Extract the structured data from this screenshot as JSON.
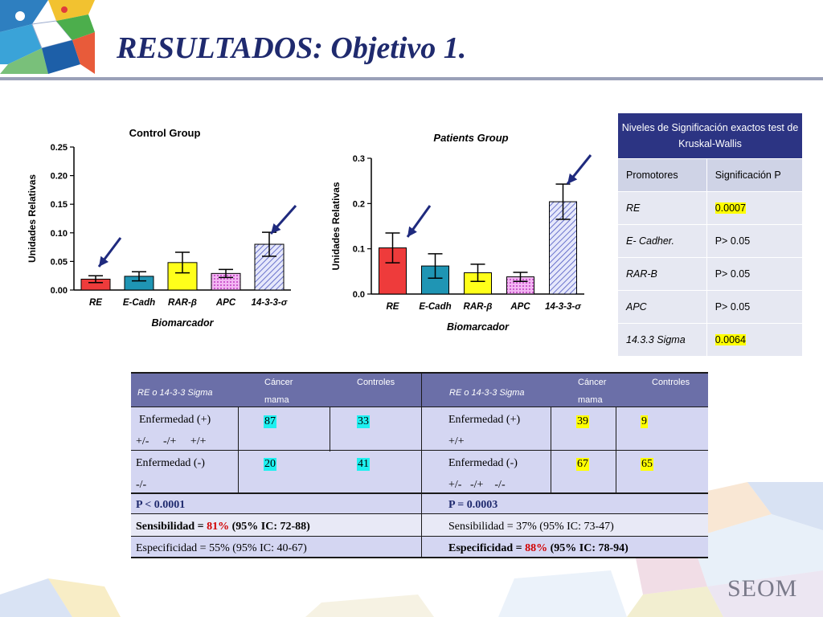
{
  "page": {
    "title": "RESULTADOS: Objetivo 1.",
    "logo": "SEOM"
  },
  "chart_data": [
    {
      "type": "bar",
      "title": "Control Group",
      "xlabel": "Biomarcador",
      "ylabel": "Unidades Relativas",
      "categories": [
        "RE",
        "E-Cadh",
        "RAR-β",
        "APC",
        "14-3-3-σ"
      ],
      "values": [
        0.019,
        0.024,
        0.048,
        0.029,
        0.08
      ],
      "errors": [
        0.006,
        0.008,
        0.018,
        0.007,
        0.021
      ],
      "ylim": [
        0,
        0.25
      ],
      "yticks": [
        "0.00",
        "0.05",
        "0.10",
        "0.15",
        "0.20",
        "0.25"
      ],
      "bar_colors": [
        "#ee3b3b",
        "#1f95b4",
        "#ffff1a",
        "#e070e0",
        "#aab0e6"
      ]
    },
    {
      "type": "bar",
      "title": "Patients Group",
      "xlabel": "Biomarcador",
      "ylabel": "Unidades Relativas",
      "categories": [
        "RE",
        "E-Cadh",
        "RAR-β",
        "APC",
        "14-3-3-σ"
      ],
      "values": [
        0.102,
        0.062,
        0.047,
        0.038,
        0.204
      ],
      "errors": [
        0.033,
        0.027,
        0.019,
        0.01,
        0.039
      ],
      "ylim": [
        0,
        0.3
      ],
      "yticks": [
        "0.0",
        "0.1",
        "0.2",
        "0.3"
      ],
      "bar_colors": [
        "#ee3b3b",
        "#1f95b4",
        "#ffff1a",
        "#e070e0",
        "#aab0e6"
      ]
    }
  ],
  "significance": {
    "title": "Niveles de Significación exactos test de Kruskal-Wallis",
    "col_promotores": "Promotores",
    "col_significacion": "Significación P",
    "rows": [
      {
        "name": "RE",
        "p": "0.0007",
        "highlight": true
      },
      {
        "name": "E- Cadher.",
        "p": "P> 0.05",
        "highlight": false
      },
      {
        "name": "RAR-B",
        "p": "P> 0.05",
        "highlight": false
      },
      {
        "name": "APC",
        "p": "P> 0.05",
        "highlight": false
      },
      {
        "name": "14.3.3 Sigma",
        "p": "0.0064",
        "highlight": true
      }
    ]
  },
  "contingency": {
    "left": {
      "header": "RE o 14-3-3 Sigma",
      "col_cancer": "Cáncer mama",
      "col_cancer_1": "Cáncer",
      "col_cancer_2": "mama",
      "col_controles": "Controles",
      "pos_label": "Enfermedad (+)",
      "pos_sub": "+/-     -/+     +/+",
      "pos_cancer": "87",
      "pos_controles": "33",
      "neg_label": "Enfermedad (-)",
      "neg_sub": "-/-",
      "neg_cancer": "20",
      "neg_controles": "41",
      "p": "P < 0.0001",
      "sens_prefix": "Sensibilidad = ",
      "sens_value": "81%",
      "sens_suffix": " (95% IC: 72-88)",
      "espec": "Especificidad = 55% (95% IC: 40-67)"
    },
    "right": {
      "header": "RE o 14-3-3 Sigma",
      "col_cancer_1": "Cáncer",
      "col_cancer_2": "mama",
      "col_controles": "Controles",
      "pos_label": "Enfermedad (+)",
      "pos_sub": "+/+",
      "pos_cancer": "39",
      "pos_controles": "9",
      "neg_label": "Enfermedad (-)",
      "neg_sub": "+/-   -/+    -/-",
      "neg_cancer": "67",
      "neg_controles": "65",
      "p": "P = 0.0003",
      "sens": "Sensibilidad = 37% (95% IC: 73-47)",
      "espec_prefix": "Especificidad = ",
      "espec_value": "88%",
      "espec_suffix": " (95% IC: 78-94)"
    }
  }
}
